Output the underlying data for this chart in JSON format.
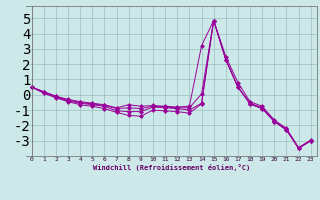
{
  "x": [
    0,
    1,
    2,
    3,
    4,
    5,
    6,
    7,
    8,
    9,
    10,
    11,
    12,
    13,
    14,
    15,
    16,
    17,
    18,
    19,
    20,
    21,
    22,
    23
  ],
  "series1": [
    0.5,
    0.2,
    -0.1,
    -0.3,
    -0.45,
    -0.55,
    -0.65,
    -0.85,
    -0.65,
    -0.75,
    -0.7,
    -0.75,
    -0.8,
    -0.75,
    3.2,
    4.85,
    2.5,
    0.8,
    -0.45,
    -0.75,
    -1.65,
    -2.2,
    -3.45,
    -2.95
  ],
  "series2": [
    0.5,
    0.2,
    -0.1,
    -0.35,
    -0.5,
    -0.6,
    -0.7,
    -0.9,
    -0.85,
    -0.9,
    -0.75,
    -0.8,
    -0.85,
    -0.85,
    0.05,
    4.85,
    2.3,
    0.5,
    -0.55,
    -0.85,
    -1.7,
    -2.25,
    -3.5,
    -3.0
  ],
  "series3": [
    0.5,
    0.15,
    -0.15,
    -0.4,
    -0.55,
    -0.65,
    -0.75,
    -1.05,
    -1.1,
    -1.1,
    -0.8,
    -0.85,
    -0.9,
    -1.0,
    -0.55,
    4.85,
    2.3,
    0.5,
    -0.6,
    -0.9,
    -1.75,
    -2.3,
    -3.5,
    -3.0
  ],
  "series4": [
    0.5,
    0.1,
    -0.2,
    -0.45,
    -0.65,
    -0.75,
    -0.9,
    -1.15,
    -1.35,
    -1.4,
    -1.0,
    -1.05,
    -1.1,
    -1.2,
    -0.6,
    4.85,
    2.3,
    0.5,
    -0.6,
    -0.9,
    -1.75,
    -2.3,
    -3.5,
    -3.0
  ],
  "line_color": "#990099",
  "marker": "D",
  "markersize": 2.5,
  "bg_color": "#cce8e8",
  "grid_color": "#9dbfbf",
  "xlabel": "Windchill (Refroidissement éolien,°C)",
  "xlim": [
    -0.5,
    23.5
  ],
  "ylim": [
    -4.0,
    5.8
  ],
  "yticks": [
    -3,
    -2,
    -1,
    0,
    1,
    2,
    3,
    4,
    5
  ],
  "xticks": [
    0,
    1,
    2,
    3,
    4,
    5,
    6,
    7,
    8,
    9,
    10,
    11,
    12,
    13,
    14,
    15,
    16,
    17,
    18,
    19,
    20,
    21,
    22,
    23
  ],
  "figsize": [
    3.2,
    2.0
  ],
  "dpi": 100
}
